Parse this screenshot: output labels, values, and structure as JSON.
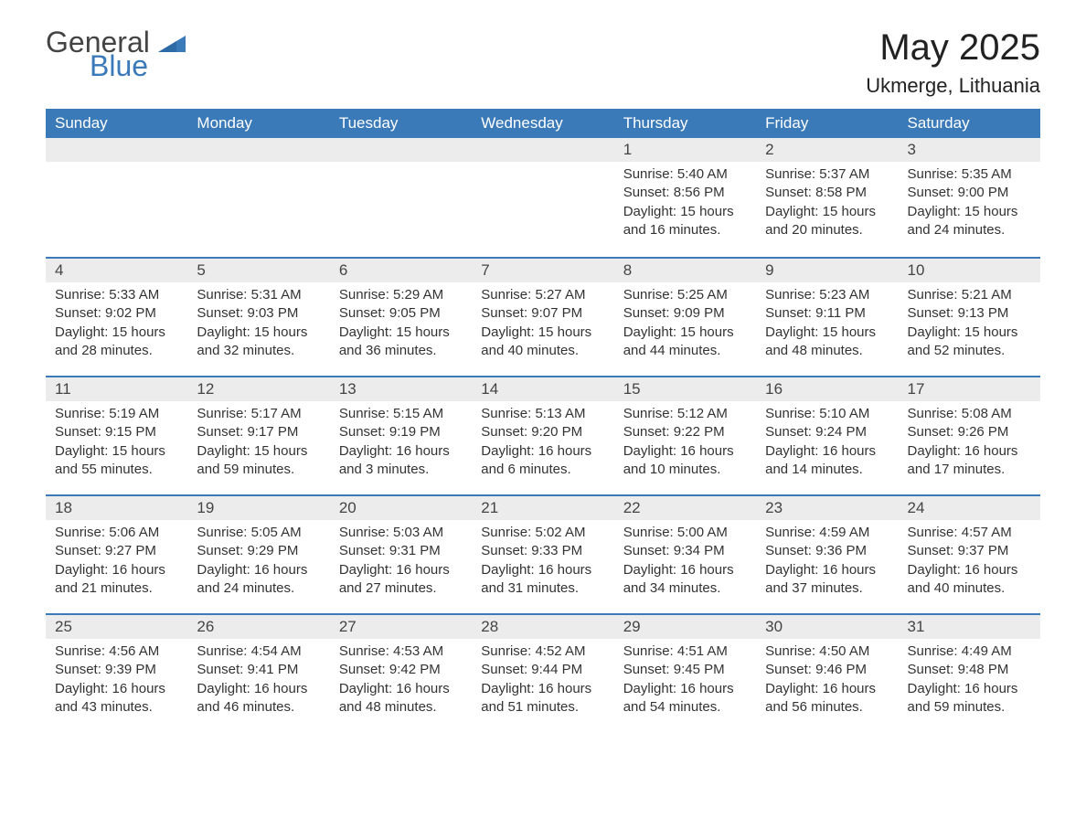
{
  "logo": {
    "word1": "General",
    "word2": "Blue",
    "icon_color": "#3a7ab8"
  },
  "title": "May 2025",
  "location": "Ukmerge, Lithuania",
  "colors": {
    "header_bg": "#3a7ab8",
    "header_text": "#ffffff",
    "daynum_bg": "#ececec",
    "text": "#333333",
    "background": "#ffffff",
    "rule": "#3a7ab8"
  },
  "typography": {
    "title_fontsize": 40,
    "location_fontsize": 22,
    "header_fontsize": 17,
    "daynum_fontsize": 17,
    "body_fontsize": 15
  },
  "layout": {
    "columns": 7,
    "rows": 5,
    "leading_blanks": 4
  },
  "weekdays": [
    "Sunday",
    "Monday",
    "Tuesday",
    "Wednesday",
    "Thursday",
    "Friday",
    "Saturday"
  ],
  "days": [
    {
      "n": "1",
      "sunrise": "5:40 AM",
      "sunset": "8:56 PM",
      "daylight": "15 hours and 16 minutes."
    },
    {
      "n": "2",
      "sunrise": "5:37 AM",
      "sunset": "8:58 PM",
      "daylight": "15 hours and 20 minutes."
    },
    {
      "n": "3",
      "sunrise": "5:35 AM",
      "sunset": "9:00 PM",
      "daylight": "15 hours and 24 minutes."
    },
    {
      "n": "4",
      "sunrise": "5:33 AM",
      "sunset": "9:02 PM",
      "daylight": "15 hours and 28 minutes."
    },
    {
      "n": "5",
      "sunrise": "5:31 AM",
      "sunset": "9:03 PM",
      "daylight": "15 hours and 32 minutes."
    },
    {
      "n": "6",
      "sunrise": "5:29 AM",
      "sunset": "9:05 PM",
      "daylight": "15 hours and 36 minutes."
    },
    {
      "n": "7",
      "sunrise": "5:27 AM",
      "sunset": "9:07 PM",
      "daylight": "15 hours and 40 minutes."
    },
    {
      "n": "8",
      "sunrise": "5:25 AM",
      "sunset": "9:09 PM",
      "daylight": "15 hours and 44 minutes."
    },
    {
      "n": "9",
      "sunrise": "5:23 AM",
      "sunset": "9:11 PM",
      "daylight": "15 hours and 48 minutes."
    },
    {
      "n": "10",
      "sunrise": "5:21 AM",
      "sunset": "9:13 PM",
      "daylight": "15 hours and 52 minutes."
    },
    {
      "n": "11",
      "sunrise": "5:19 AM",
      "sunset": "9:15 PM",
      "daylight": "15 hours and 55 minutes."
    },
    {
      "n": "12",
      "sunrise": "5:17 AM",
      "sunset": "9:17 PM",
      "daylight": "15 hours and 59 minutes."
    },
    {
      "n": "13",
      "sunrise": "5:15 AM",
      "sunset": "9:19 PM",
      "daylight": "16 hours and 3 minutes."
    },
    {
      "n": "14",
      "sunrise": "5:13 AM",
      "sunset": "9:20 PM",
      "daylight": "16 hours and 6 minutes."
    },
    {
      "n": "15",
      "sunrise": "5:12 AM",
      "sunset": "9:22 PM",
      "daylight": "16 hours and 10 minutes."
    },
    {
      "n": "16",
      "sunrise": "5:10 AM",
      "sunset": "9:24 PM",
      "daylight": "16 hours and 14 minutes."
    },
    {
      "n": "17",
      "sunrise": "5:08 AM",
      "sunset": "9:26 PM",
      "daylight": "16 hours and 17 minutes."
    },
    {
      "n": "18",
      "sunrise": "5:06 AM",
      "sunset": "9:27 PM",
      "daylight": "16 hours and 21 minutes."
    },
    {
      "n": "19",
      "sunrise": "5:05 AM",
      "sunset": "9:29 PM",
      "daylight": "16 hours and 24 minutes."
    },
    {
      "n": "20",
      "sunrise": "5:03 AM",
      "sunset": "9:31 PM",
      "daylight": "16 hours and 27 minutes."
    },
    {
      "n": "21",
      "sunrise": "5:02 AM",
      "sunset": "9:33 PM",
      "daylight": "16 hours and 31 minutes."
    },
    {
      "n": "22",
      "sunrise": "5:00 AM",
      "sunset": "9:34 PM",
      "daylight": "16 hours and 34 minutes."
    },
    {
      "n": "23",
      "sunrise": "4:59 AM",
      "sunset": "9:36 PM",
      "daylight": "16 hours and 37 minutes."
    },
    {
      "n": "24",
      "sunrise": "4:57 AM",
      "sunset": "9:37 PM",
      "daylight": "16 hours and 40 minutes."
    },
    {
      "n": "25",
      "sunrise": "4:56 AM",
      "sunset": "9:39 PM",
      "daylight": "16 hours and 43 minutes."
    },
    {
      "n": "26",
      "sunrise": "4:54 AM",
      "sunset": "9:41 PM",
      "daylight": "16 hours and 46 minutes."
    },
    {
      "n": "27",
      "sunrise": "4:53 AM",
      "sunset": "9:42 PM",
      "daylight": "16 hours and 48 minutes."
    },
    {
      "n": "28",
      "sunrise": "4:52 AM",
      "sunset": "9:44 PM",
      "daylight": "16 hours and 51 minutes."
    },
    {
      "n": "29",
      "sunrise": "4:51 AM",
      "sunset": "9:45 PM",
      "daylight": "16 hours and 54 minutes."
    },
    {
      "n": "30",
      "sunrise": "4:50 AM",
      "sunset": "9:46 PM",
      "daylight": "16 hours and 56 minutes."
    },
    {
      "n": "31",
      "sunrise": "4:49 AM",
      "sunset": "9:48 PM",
      "daylight": "16 hours and 59 minutes."
    }
  ],
  "labels": {
    "sunrise": "Sunrise: ",
    "sunset": "Sunset: ",
    "daylight": "Daylight: "
  }
}
